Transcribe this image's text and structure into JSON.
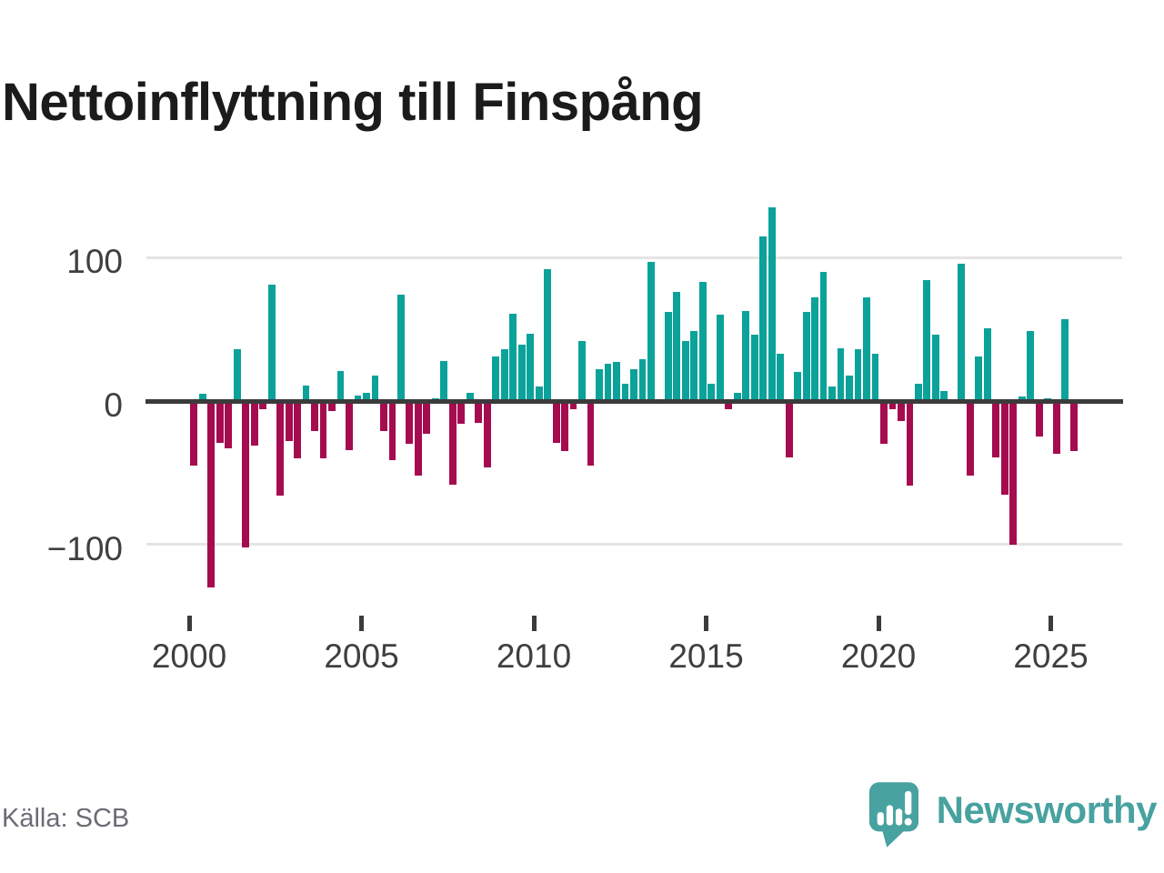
{
  "title": "Nettoinflyttning till Finspång",
  "source": "Källa: SCB",
  "branding": {
    "name": "Newsworthy",
    "teal": "#47a2a0"
  },
  "colors": {
    "positive_bar": "#0ba29a",
    "negative_bar": "#a50b4f",
    "axis_line": "#3b3b3b",
    "gridline": "#e4e4e4",
    "tick_label": "#3f3f3f",
    "title_text": "#1b1b1b",
    "source_text": "#6c6c75",
    "background": "#ffffff"
  },
  "chart_data": {
    "type": "bar",
    "title": "Nettoinflyttning till Finspång",
    "xlabel": "",
    "ylabel": "",
    "legend_position": "none",
    "grid": "horizontal gridlines at 100 and -100, dark zero axis line",
    "ylim": [
      -140,
      145
    ],
    "yticks": [
      100,
      0,
      -100
    ],
    "ytick_labels": [
      "100",
      "0",
      "−100"
    ],
    "xtick_labels": [
      "2000",
      "2005",
      "2010",
      "2015",
      "2020",
      "2025"
    ],
    "quarters": [
      "2000Q1",
      "2000Q2",
      "2000Q3",
      "2000Q4",
      "2001Q1",
      "2001Q2",
      "2001Q3",
      "2001Q4",
      "2002Q1",
      "2002Q2",
      "2002Q3",
      "2002Q4",
      "2003Q1",
      "2003Q2",
      "2003Q3",
      "2003Q4",
      "2004Q1",
      "2004Q2",
      "2004Q3",
      "2004Q4",
      "2005Q1",
      "2005Q2",
      "2005Q3",
      "2005Q4",
      "2006Q1",
      "2006Q2",
      "2006Q3",
      "2006Q4",
      "2007Q1",
      "2007Q2",
      "2007Q3",
      "2007Q4",
      "2008Q1",
      "2008Q2",
      "2008Q3",
      "2008Q4",
      "2009Q1",
      "2009Q2",
      "2009Q3",
      "2009Q4",
      "2010Q1",
      "2010Q2",
      "2010Q3",
      "2010Q4",
      "2011Q1",
      "2011Q2",
      "2011Q3",
      "2011Q4",
      "2012Q1",
      "2012Q2",
      "2012Q3",
      "2012Q4",
      "2013Q1",
      "2013Q2",
      "2013Q3",
      "2013Q4",
      "2014Q1",
      "2014Q2",
      "2014Q3",
      "2014Q4",
      "2015Q1",
      "2015Q2",
      "2015Q3",
      "2015Q4",
      "2016Q1",
      "2016Q2",
      "2016Q3",
      "2016Q4",
      "2017Q1",
      "2017Q2",
      "2017Q3",
      "2017Q4",
      "2018Q1",
      "2018Q2",
      "2018Q3",
      "2018Q4",
      "2019Q1",
      "2019Q2",
      "2019Q3",
      "2019Q4",
      "2020Q1",
      "2020Q2",
      "2020Q3",
      "2020Q4",
      "2021Q1",
      "2021Q2",
      "2021Q3",
      "2021Q4",
      "2022Q1",
      "2022Q2",
      "2022Q3",
      "2022Q4",
      "2023Q1",
      "2023Q2",
      "2023Q3",
      "2023Q4",
      "2024Q1",
      "2024Q2",
      "2024Q3",
      "2024Q4",
      "2025Q1",
      "2025Q2",
      "2025Q3"
    ],
    "values": [
      -45,
      5,
      -130,
      -29,
      -33,
      36,
      -102,
      -31,
      -6,
      81,
      -66,
      -28,
      -40,
      11,
      -21,
      -40,
      -7,
      21,
      -34,
      4,
      6,
      18,
      -21,
      -41,
      74,
      -30,
      -52,
      -23,
      2,
      28,
      -58,
      -16,
      6,
      -15,
      -46,
      31,
      36,
      61,
      39,
      47,
      10,
      92,
      -29,
      -35,
      -6,
      42,
      -45,
      22,
      26,
      27,
      12,
      22,
      29,
      97,
      0,
      62,
      76,
      42,
      49,
      83,
      12,
      60,
      -6,
      6,
      63,
      46,
      115,
      135,
      33,
      -39,
      20,
      62,
      72,
      90,
      10,
      37,
      18,
      36,
      72,
      33,
      -30,
      -6,
      -14,
      -59,
      12,
      84,
      46,
      7,
      0,
      96,
      -52,
      31,
      51,
      -39,
      -65,
      -100,
      3,
      49,
      -25,
      2,
      -37,
      57,
      -35
    ]
  }
}
